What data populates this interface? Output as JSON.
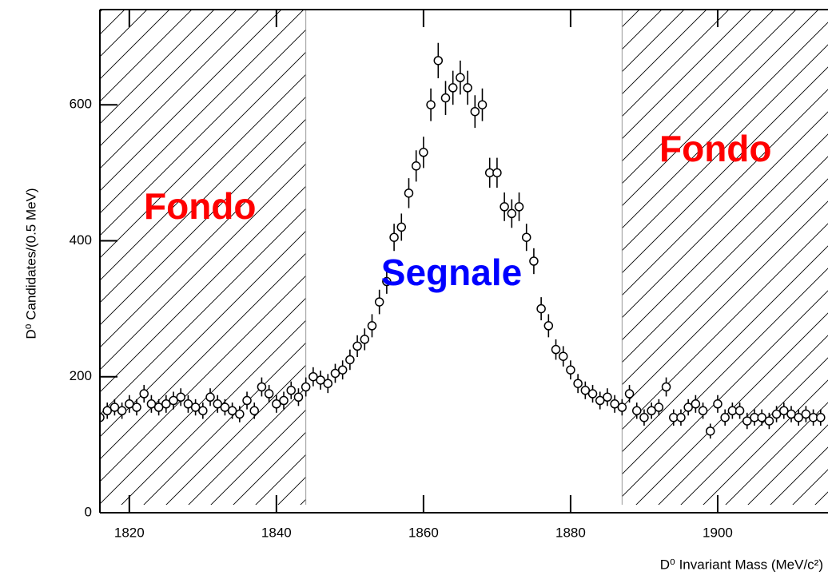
{
  "chart_data": {
    "type": "scatter",
    "x_label": "D⁰ Invariant Mass (MeV/c²)",
    "y_label": "D⁰ Candidates/(0.5 MeV)",
    "color": "#000000",
    "x": [
      1816,
      1817,
      1818,
      1819,
      1820,
      1821,
      1822,
      1823,
      1824,
      1825,
      1826,
      1827,
      1828,
      1829,
      1830,
      1831,
      1832,
      1833,
      1834,
      1835,
      1836,
      1837,
      1838,
      1839,
      1840,
      1841,
      1842,
      1843,
      1844,
      1845,
      1846,
      1847,
      1848,
      1849,
      1850,
      1851,
      1852,
      1853,
      1854,
      1855,
      1856,
      1857,
      1858,
      1859,
      1860,
      1861,
      1862,
      1863,
      1864,
      1865,
      1866,
      1867,
      1868,
      1869,
      1870,
      1871,
      1872,
      1873,
      1874,
      1875,
      1876,
      1877,
      1878,
      1879,
      1880,
      1881,
      1882,
      1883,
      1884,
      1885,
      1886,
      1887,
      1888,
      1889,
      1890,
      1891,
      1892,
      1893,
      1894,
      1895,
      1896,
      1897,
      1898,
      1899,
      1900,
      1901,
      1902,
      1903,
      1904,
      1905,
      1906,
      1907,
      1908,
      1909,
      1910,
      1911,
      1912,
      1913,
      1914
    ],
    "values": [
      140,
      150,
      155,
      150,
      160,
      155,
      175,
      160,
      155,
      160,
      165,
      170,
      160,
      155,
      150,
      170,
      160,
      155,
      150,
      145,
      165,
      150,
      185,
      175,
      160,
      165,
      180,
      170,
      185,
      200,
      195,
      190,
      205,
      210,
      225,
      245,
      255,
      275,
      310,
      340,
      405,
      420,
      470,
      510,
      530,
      600,
      665,
      610,
      625,
      640,
      625,
      590,
      600,
      500,
      500,
      450,
      440,
      450,
      405,
      370,
      300,
      275,
      240,
      230,
      210,
      190,
      180,
      175,
      165,
      170,
      160,
      155,
      175,
      150,
      140,
      150,
      155,
      185,
      140,
      140,
      155,
      160,
      150,
      120,
      160,
      140,
      150,
      150,
      135,
      140,
      140,
      135,
      145,
      150,
      145,
      140,
      145,
      140,
      140
    ],
    "errors": [
      12,
      12,
      12,
      12,
      13,
      12,
      13,
      13,
      12,
      13,
      13,
      13,
      13,
      12,
      12,
      13,
      13,
      12,
      12,
      12,
      13,
      12,
      14,
      13,
      13,
      13,
      13,
      13,
      14,
      14,
      14,
      14,
      14,
      14,
      15,
      16,
      16,
      17,
      18,
      18,
      20,
      20,
      22,
      23,
      23,
      24,
      26,
      25,
      25,
      25,
      25,
      24,
      24,
      22,
      22,
      21,
      21,
      21,
      20,
      19,
      17,
      17,
      15,
      15,
      14,
      14,
      13,
      13,
      13,
      13,
      13,
      12,
      13,
      12,
      12,
      12,
      12,
      14,
      12,
      12,
      12,
      13,
      12,
      11,
      13,
      12,
      12,
      12,
      12,
      12,
      12,
      12,
      12,
      12,
      12,
      12,
      12,
      12,
      12
    ],
    "xlim": [
      1816,
      1915
    ],
    "ylim": [
      0,
      740
    ],
    "xticks": [
      1820,
      1840,
      1860,
      1880,
      1900
    ],
    "yticks": [
      0,
      200,
      400,
      600
    ],
    "bands": [
      [
        1816,
        1844
      ],
      [
        1887,
        1915
      ]
    ],
    "annotations": [
      {
        "text": "Fondo",
        "color": "#ff0000"
      },
      {
        "text": "Segnale",
        "color": "#0000ff"
      },
      {
        "text": "Fondo",
        "color": "#ff0000"
      }
    ]
  }
}
